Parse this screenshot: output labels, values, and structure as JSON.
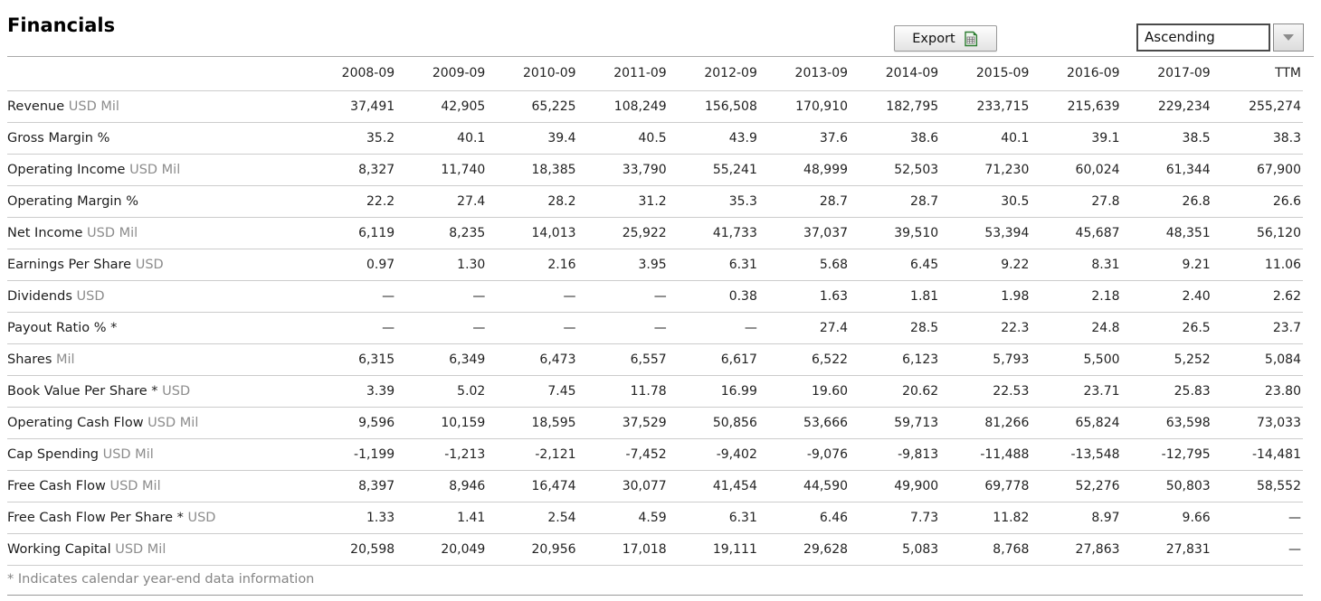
{
  "header": {
    "title": "Financials",
    "export_label": "Export",
    "sort_value": "Ascending"
  },
  "icons": {
    "export": "spreadsheet-icon",
    "dropdown": "chevron-down-icon"
  },
  "colors": {
    "export_icon_green": "#2e7d32",
    "row_separator": "#cccccc",
    "unit_text": "#8c8c8c"
  },
  "table": {
    "columns": [
      "2008-09",
      "2009-09",
      "2010-09",
      "2011-09",
      "2012-09",
      "2013-09",
      "2014-09",
      "2015-09",
      "2016-09",
      "2017-09",
      "TTM"
    ],
    "rows": [
      {
        "label": "Revenue",
        "unit": "USD Mil",
        "values": [
          "37,491",
          "42,905",
          "65,225",
          "108,249",
          "156,508",
          "170,910",
          "182,795",
          "233,715",
          "215,639",
          "229,234",
          "255,274"
        ]
      },
      {
        "label": "Gross Margin %",
        "unit": "",
        "values": [
          "35.2",
          "40.1",
          "39.4",
          "40.5",
          "43.9",
          "37.6",
          "38.6",
          "40.1",
          "39.1",
          "38.5",
          "38.3"
        ]
      },
      {
        "label": "Operating Income",
        "unit": "USD Mil",
        "values": [
          "8,327",
          "11,740",
          "18,385",
          "33,790",
          "55,241",
          "48,999",
          "52,503",
          "71,230",
          "60,024",
          "61,344",
          "67,900"
        ]
      },
      {
        "label": "Operating Margin %",
        "unit": "",
        "values": [
          "22.2",
          "27.4",
          "28.2",
          "31.2",
          "35.3",
          "28.7",
          "28.7",
          "30.5",
          "27.8",
          "26.8",
          "26.6"
        ]
      },
      {
        "label": "Net Income",
        "unit": "USD Mil",
        "values": [
          "6,119",
          "8,235",
          "14,013",
          "25,922",
          "41,733",
          "37,037",
          "39,510",
          "53,394",
          "45,687",
          "48,351",
          "56,120"
        ]
      },
      {
        "label": "Earnings Per Share",
        "unit": "USD",
        "values": [
          "0.97",
          "1.30",
          "2.16",
          "3.95",
          "6.31",
          "5.68",
          "6.45",
          "9.22",
          "8.31",
          "9.21",
          "11.06"
        ]
      },
      {
        "label": "Dividends",
        "unit": "USD",
        "values": [
          "—",
          "—",
          "—",
          "—",
          "0.38",
          "1.63",
          "1.81",
          "1.98",
          "2.18",
          "2.40",
          "2.62"
        ]
      },
      {
        "label": "Payout Ratio % *",
        "unit": "",
        "values": [
          "—",
          "—",
          "—",
          "—",
          "—",
          "27.4",
          "28.5",
          "22.3",
          "24.8",
          "26.5",
          "23.7"
        ]
      },
      {
        "label": "Shares",
        "unit": "Mil",
        "values": [
          "6,315",
          "6,349",
          "6,473",
          "6,557",
          "6,617",
          "6,522",
          "6,123",
          "5,793",
          "5,500",
          "5,252",
          "5,084"
        ]
      },
      {
        "label": "Book Value Per Share *",
        "unit": "USD",
        "values": [
          "3.39",
          "5.02",
          "7.45",
          "11.78",
          "16.99",
          "19.60",
          "20.62",
          "22.53",
          "23.71",
          "25.83",
          "23.80"
        ]
      },
      {
        "label": "Operating Cash Flow",
        "unit": "USD Mil",
        "values": [
          "9,596",
          "10,159",
          "18,595",
          "37,529",
          "50,856",
          "53,666",
          "59,713",
          "81,266",
          "65,824",
          "63,598",
          "73,033"
        ]
      },
      {
        "label": "Cap Spending",
        "unit": "USD Mil",
        "values": [
          "-1,199",
          "-1,213",
          "-2,121",
          "-7,452",
          "-9,402",
          "-9,076",
          "-9,813",
          "-11,488",
          "-13,548",
          "-12,795",
          "-14,481"
        ]
      },
      {
        "label": "Free Cash Flow",
        "unit": "USD Mil",
        "values": [
          "8,397",
          "8,946",
          "16,474",
          "30,077",
          "41,454",
          "44,590",
          "49,900",
          "69,778",
          "52,276",
          "50,803",
          "58,552"
        ]
      },
      {
        "label": "Free Cash Flow Per Share *",
        "unit": "USD",
        "values": [
          "1.33",
          "1.41",
          "2.54",
          "4.59",
          "6.31",
          "6.46",
          "7.73",
          "11.82",
          "8.97",
          "9.66",
          "—"
        ]
      },
      {
        "label": "Working Capital",
        "unit": "USD Mil",
        "values": [
          "20,598",
          "20,049",
          "20,956",
          "17,018",
          "19,111",
          "29,628",
          "5,083",
          "8,768",
          "27,863",
          "27,831",
          "—"
        ]
      }
    ]
  },
  "footnote": "* Indicates calendar year-end data information"
}
